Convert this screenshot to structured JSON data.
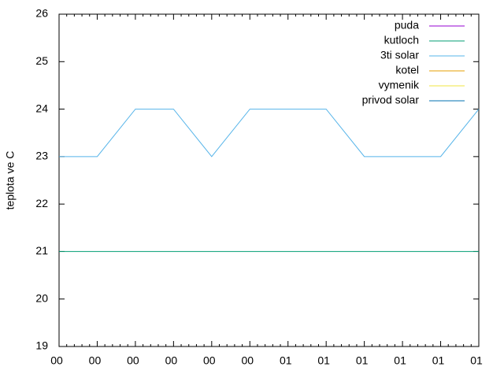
{
  "chart_data": {
    "type": "line",
    "y_label": "teplota ve C",
    "x": [
      0,
      1,
      2,
      3,
      4,
      5,
      6,
      7,
      8,
      9,
      10,
      11
    ],
    "xlim": [
      0,
      11
    ],
    "xticks": [
      {
        "value": 0,
        "label": "00"
      },
      {
        "value": 1,
        "label": "00"
      },
      {
        "value": 2,
        "label": "00"
      },
      {
        "value": 3,
        "label": "00"
      },
      {
        "value": 4,
        "label": "00"
      },
      {
        "value": 5,
        "label": "00"
      },
      {
        "value": 6,
        "label": "01"
      },
      {
        "value": 7,
        "label": "01"
      },
      {
        "value": 8,
        "label": "01"
      },
      {
        "value": 9,
        "label": "01"
      },
      {
        "value": 10,
        "label": "01"
      },
      {
        "value": 11,
        "label": "01"
      }
    ],
    "ylim": [
      19,
      26
    ],
    "yticks": [
      19,
      20,
      21,
      22,
      23,
      24,
      25,
      26
    ],
    "legend": "top-right",
    "series": [
      {
        "name": "puda",
        "color": "#9400d3",
        "values": [
          null,
          null,
          null,
          null,
          null,
          null,
          null,
          null,
          null,
          null,
          null,
          null
        ]
      },
      {
        "name": "kutloch",
        "color": "#009e73",
        "values": [
          21,
          21,
          21,
          21,
          21,
          21,
          21,
          21,
          21,
          21,
          21,
          21
        ]
      },
      {
        "name": "3ti solar",
        "color": "#56b4e9",
        "values": [
          23,
          23,
          24,
          24,
          23,
          24,
          24,
          24,
          23,
          23,
          23,
          24
        ]
      },
      {
        "name": "kotel",
        "color": "#e69f00",
        "values": [
          null,
          null,
          null,
          null,
          null,
          null,
          null,
          null,
          null,
          null,
          null,
          null
        ]
      },
      {
        "name": "vymenik",
        "color": "#f0e442",
        "values": [
          null,
          null,
          null,
          null,
          null,
          null,
          null,
          null,
          null,
          null,
          null,
          null
        ]
      },
      {
        "name": "privod solar",
        "color": "#0072b2",
        "values": [
          null,
          null,
          null,
          null,
          null,
          null,
          null,
          null,
          null,
          null,
          null,
          null
        ]
      }
    ]
  }
}
